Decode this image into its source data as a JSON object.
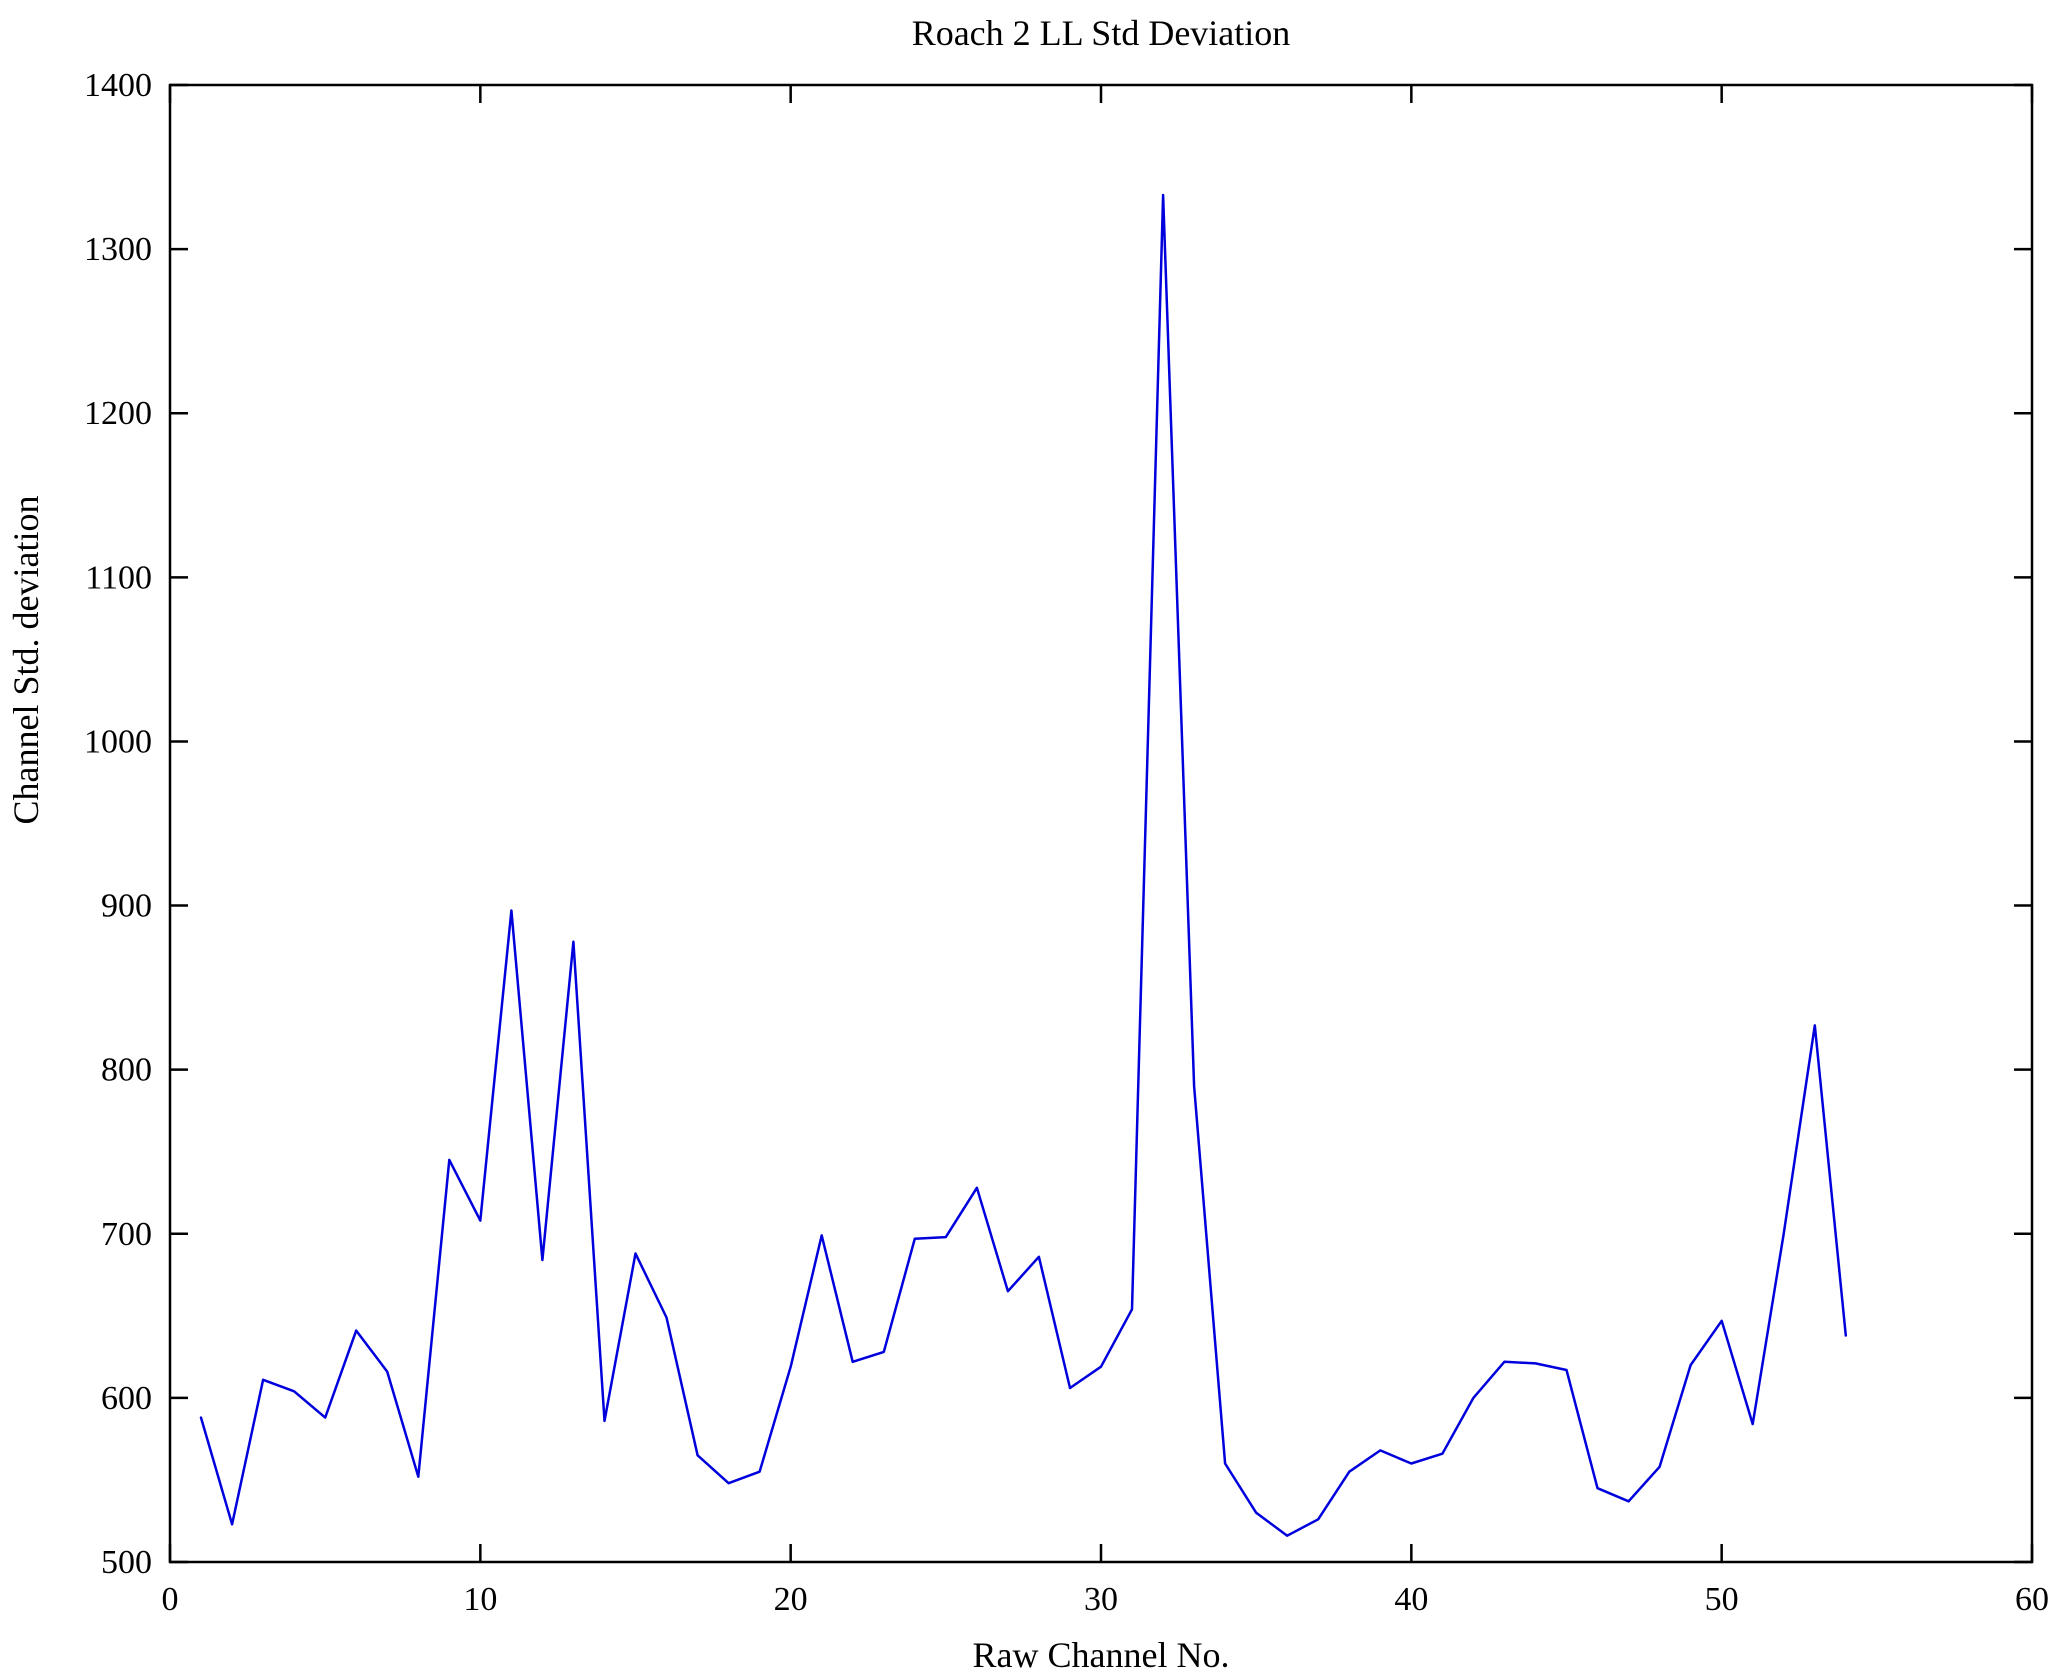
{
  "figure": {
    "title": "Roach 2 LL Std Deviation",
    "xlabel": "Raw Channel No.",
    "ylabel": "Channel Std. deviation"
  },
  "colors": {
    "line": "#0000dd",
    "axis": "#000000",
    "background": "#ffffff"
  },
  "chart_data": {
    "type": "line",
    "title": "Roach 2 LL Std Deviation",
    "xlabel": "Raw Channel No.",
    "ylabel": "Channel Std. deviation",
    "xlim": [
      0,
      60
    ],
    "ylim": [
      500,
      1400
    ],
    "xticks": [
      0,
      10,
      20,
      30,
      40,
      50,
      60
    ],
    "yticks": [
      500,
      600,
      700,
      800,
      900,
      1000,
      1100,
      1200,
      1300,
      1400
    ],
    "grid": false,
    "legend": null,
    "x": [
      1,
      2,
      3,
      4,
      5,
      6,
      7,
      8,
      9,
      10,
      11,
      12,
      13,
      14,
      15,
      16,
      17,
      18,
      19,
      20,
      21,
      22,
      23,
      24,
      25,
      26,
      27,
      28,
      29,
      30,
      31,
      32,
      33,
      34,
      35,
      36,
      37,
      38,
      39,
      40,
      41,
      42,
      43,
      44,
      45,
      46,
      47,
      48,
      49,
      50,
      51,
      52,
      53,
      54
    ],
    "y": [
      588,
      523,
      611,
      604,
      588,
      641,
      616,
      552,
      745,
      708,
      897,
      684,
      878,
      586,
      688,
      649,
      565,
      548,
      555,
      619,
      699,
      622,
      628,
      697,
      698,
      728,
      665,
      686,
      606,
      619,
      654,
      1333,
      790,
      560,
      530,
      516,
      526,
      555,
      568,
      560,
      566,
      600,
      622,
      621,
      617,
      545,
      537,
      558,
      620,
      647,
      584,
      700,
      827,
      638
    ]
  }
}
